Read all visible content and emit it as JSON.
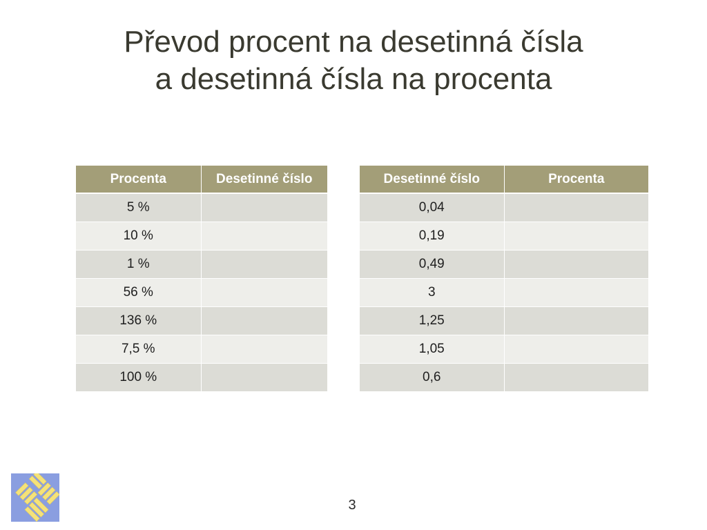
{
  "title": {
    "line1": "Převod procent na desetinná čísla",
    "line2": "a desetinná čísla na procenta"
  },
  "table_left": {
    "headers": [
      "Procenta",
      "Desetinné číslo"
    ],
    "rows": [
      [
        "5 %",
        ""
      ],
      [
        "10 %",
        ""
      ],
      [
        "1 %",
        ""
      ],
      [
        "56 %",
        ""
      ],
      [
        "136 %",
        ""
      ],
      [
        "7,5 %",
        ""
      ],
      [
        "100 %",
        ""
      ]
    ]
  },
  "table_right": {
    "headers": [
      "Desetinné číslo",
      "Procenta"
    ],
    "rows": [
      [
        "0,04",
        ""
      ],
      [
        "0,19",
        ""
      ],
      [
        "0,49",
        ""
      ],
      [
        "3",
        ""
      ],
      [
        "1,25",
        ""
      ],
      [
        "1,05",
        ""
      ],
      [
        "0,6",
        ""
      ]
    ]
  },
  "page_number": "3",
  "colors": {
    "header_bg": "#a39e78",
    "row_odd": "#dcdcd6",
    "row_even": "#eeeeea",
    "logo_bg": "#8a9ee0",
    "logo_fg": "#f5e27a"
  },
  "logo": {
    "icon": "woven-square-logo-icon"
  }
}
